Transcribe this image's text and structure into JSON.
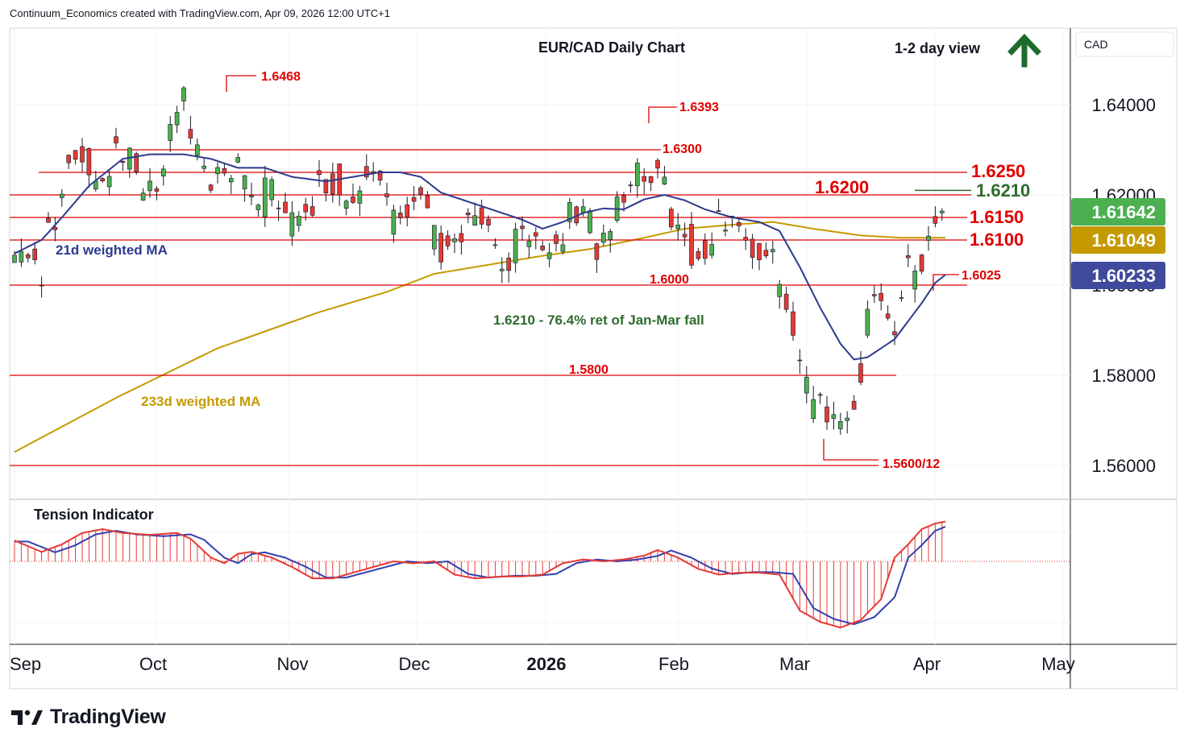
{
  "header": {
    "attribution": "Continuum_Economics created with TradingView.com, Apr 09, 2026 12:00 UTC+1"
  },
  "brand": {
    "name": "TradingView",
    "icon": "tradingview-logo-icon"
  },
  "chart_data": {
    "type": "candlestick",
    "title": "EUR/CAD Daily Chart",
    "view": {
      "label": "1-2 day view",
      "icon": "arrow-up-icon",
      "color": "#1e6b2e"
    },
    "currency_label": "CAD",
    "y_ticks": [
      "1.64000",
      "1.62000",
      "1.60000",
      "1.58000",
      "1.56000"
    ],
    "ylim": [
      1.553,
      1.654
    ],
    "x_labels": [
      "Sep",
      "Oct",
      "Nov",
      "Dec",
      "2026",
      "Feb",
      "Mar",
      "Apr",
      "May"
    ],
    "x_label_bold": "2026",
    "price_tags": [
      {
        "value": "1.61642",
        "price": 1.61642,
        "color": "#4caf50"
      },
      {
        "value": "1.61049",
        "price": 1.61049,
        "color": "#c49a00"
      },
      {
        "value": "1.60233",
        "price": 1.60233,
        "color": "#3f4a9c"
      }
    ],
    "horizontal_levels": [
      {
        "label": "1.6250",
        "price": 1.625,
        "color": "#e00000",
        "large": true
      },
      {
        "label": "1.6200",
        "price": 1.62,
        "color": "#e00000",
        "large": true
      },
      {
        "label": "1.6150",
        "price": 1.615,
        "color": "#e00000",
        "large": true
      },
      {
        "label": "1.6100",
        "price": 1.61,
        "color": "#e00000",
        "large": true
      },
      {
        "label": "1.6300",
        "price": 1.63,
        "color": "#e00000"
      },
      {
        "label": "1.6000",
        "price": 1.6,
        "color": "#e00000"
      },
      {
        "label": "1.5800",
        "price": 1.58,
        "color": "#e00000"
      },
      {
        "label": "1.5600/12",
        "price": 1.56,
        "color": "#e00000"
      },
      {
        "label": "1.6210",
        "price": 1.621,
        "color": "#2e6b2e",
        "large": true
      }
    ],
    "peak_labels": [
      {
        "label": "1.6468",
        "price": 1.6468
      },
      {
        "label": "1.6393",
        "price": 1.6393
      },
      {
        "label": "1.6025",
        "price": 1.6025
      }
    ],
    "annotation": "1.6210 - 76.4% ret of Jan-Mar fall",
    "ma_labels": {
      "ma21": "21d weighted MA",
      "ma233": "233d weighted MA"
    },
    "indicator": {
      "title": "Tension Indicator"
    },
    "colors": {
      "up": "#4caf50",
      "down": "#e53935",
      "level": "#e00000",
      "ma21": "#2c3a8c",
      "ma233": "#c49a00",
      "tension_red": "#e53935",
      "tension_blue": "#3040b0"
    },
    "series": {
      "price_key_points": [
        [
          0,
          1.608
        ],
        [
          8,
          1.607
        ],
        [
          10,
          1.618
        ],
        [
          18,
          1.629
        ],
        [
          30,
          1.63
        ],
        [
          38,
          1.625
        ],
        [
          44,
          1.629
        ],
        [
          50,
          1.642
        ],
        [
          56,
          1.632
        ],
        [
          62,
          1.624
        ],
        [
          68,
          1.628
        ],
        [
          74,
          1.623
        ],
        [
          80,
          1.617
        ],
        [
          86,
          1.624
        ],
        [
          94,
          1.623
        ],
        [
          100,
          1.627
        ],
        [
          106,
          1.626
        ],
        [
          112,
          1.62
        ],
        [
          118,
          1.626
        ],
        [
          120,
          1.623
        ],
        [
          124,
          1.611
        ],
        [
          130,
          1.616
        ],
        [
          140,
          1.615
        ],
        [
          146,
          1.61
        ],
        [
          152,
          1.611
        ],
        [
          156,
          1.612
        ],
        [
          162,
          1.616
        ],
        [
          168,
          1.616
        ],
        [
          172,
          1.613
        ],
        [
          176,
          1.618
        ],
        [
          180,
          1.617
        ],
        [
          184,
          1.625
        ],
        [
          190,
          1.633
        ],
        [
          192,
          1.628
        ],
        [
          194,
          1.614
        ],
        [
          200,
          1.613
        ],
        [
          206,
          1.614
        ],
        [
          212,
          1.613
        ],
        [
          218,
          1.614
        ],
        [
          222,
          1.615
        ],
        [
          226,
          1.6
        ],
        [
          232,
          1.588
        ],
        [
          236,
          1.578
        ],
        [
          240,
          1.572
        ],
        [
          244,
          1.569
        ],
        [
          248,
          1.58
        ],
        [
          252,
          1.594
        ],
        [
          256,
          1.596
        ],
        [
          260,
          1.595
        ],
        [
          264,
          1.61
        ],
        [
          268,
          1.606
        ],
        [
          272,
          1.615
        ],
        [
          275,
          1.6164
        ]
      ],
      "ma21_key_points": [
        [
          0,
          1.607
        ],
        [
          8,
          1.61
        ],
        [
          14,
          1.615
        ],
        [
          22,
          1.622
        ],
        [
          32,
          1.628
        ],
        [
          40,
          1.629
        ],
        [
          50,
          1.629
        ],
        [
          58,
          1.628
        ],
        [
          66,
          1.626
        ],
        [
          74,
          1.626
        ],
        [
          82,
          1.624
        ],
        [
          92,
          1.623
        ],
        [
          100,
          1.624
        ],
        [
          108,
          1.625
        ],
        [
          114,
          1.625
        ],
        [
          120,
          1.624
        ],
        [
          126,
          1.6205
        ],
        [
          134,
          1.6185
        ],
        [
          142,
          1.6165
        ],
        [
          150,
          1.6145
        ],
        [
          156,
          1.6125
        ],
        [
          162,
          1.614
        ],
        [
          168,
          1.616
        ],
        [
          174,
          1.617
        ],
        [
          180,
          1.6168
        ],
        [
          186,
          1.619
        ],
        [
          192,
          1.62
        ],
        [
          198,
          1.6188
        ],
        [
          204,
          1.6168
        ],
        [
          212,
          1.615
        ],
        [
          220,
          1.614
        ],
        [
          226,
          1.612
        ],
        [
          232,
          1.604
        ],
        [
          238,
          1.595
        ],
        [
          244,
          1.587
        ],
        [
          248,
          1.5835
        ],
        [
          252,
          1.584
        ],
        [
          256,
          1.586
        ],
        [
          260,
          1.588
        ],
        [
          264,
          1.592
        ],
        [
          268,
          1.596
        ],
        [
          272,
          1.6005
        ],
        [
          275,
          1.6023
        ]
      ],
      "ma233_key_points": [
        [
          0,
          1.563
        ],
        [
          30,
          1.575
        ],
        [
          60,
          1.586
        ],
        [
          90,
          1.594
        ],
        [
          110,
          1.5985
        ],
        [
          124,
          1.6025
        ],
        [
          140,
          1.6045
        ],
        [
          156,
          1.6065
        ],
        [
          170,
          1.608
        ],
        [
          186,
          1.6105
        ],
        [
          198,
          1.6125
        ],
        [
          214,
          1.6135
        ],
        [
          224,
          1.614
        ],
        [
          236,
          1.6125
        ],
        [
          250,
          1.611
        ],
        [
          262,
          1.6105
        ],
        [
          275,
          1.6105
        ]
      ],
      "tension_key_points": [
        [
          0,
          0.55
        ],
        [
          8,
          0.25
        ],
        [
          14,
          0.45
        ],
        [
          20,
          0.75
        ],
        [
          26,
          0.85
        ],
        [
          32,
          0.75
        ],
        [
          40,
          0.7
        ],
        [
          48,
          0.75
        ],
        [
          52,
          0.6
        ],
        [
          58,
          0.1
        ],
        [
          62,
          -0.05
        ],
        [
          66,
          0.2
        ],
        [
          70,
          0.25
        ],
        [
          76,
          0.1
        ],
        [
          82,
          -0.15
        ],
        [
          88,
          -0.45
        ],
        [
          94,
          -0.45
        ],
        [
          100,
          -0.3
        ],
        [
          106,
          -0.15
        ],
        [
          112,
          0.0
        ],
        [
          118,
          -0.05
        ],
        [
          124,
          0.0
        ],
        [
          130,
          -0.35
        ],
        [
          136,
          -0.45
        ],
        [
          144,
          -0.4
        ],
        [
          150,
          -0.4
        ],
        [
          156,
          -0.35
        ],
        [
          162,
          -0.05
        ],
        [
          168,
          0.05
        ],
        [
          174,
          0.0
        ],
        [
          180,
          0.05
        ],
        [
          186,
          0.15
        ],
        [
          190,
          0.3
        ],
        [
          196,
          0.1
        ],
        [
          202,
          -0.2
        ],
        [
          208,
          -0.35
        ],
        [
          214,
          -0.3
        ],
        [
          220,
          -0.3
        ],
        [
          226,
          -0.35
        ],
        [
          232,
          -1.3
        ],
        [
          238,
          -1.6
        ],
        [
          244,
          -1.75
        ],
        [
          250,
          -1.55
        ],
        [
          256,
          -1.0
        ],
        [
          260,
          0.1
        ],
        [
          264,
          0.45
        ],
        [
          268,
          0.85
        ],
        [
          272,
          1.0
        ],
        [
          275,
          1.05
        ]
      ]
    }
  }
}
